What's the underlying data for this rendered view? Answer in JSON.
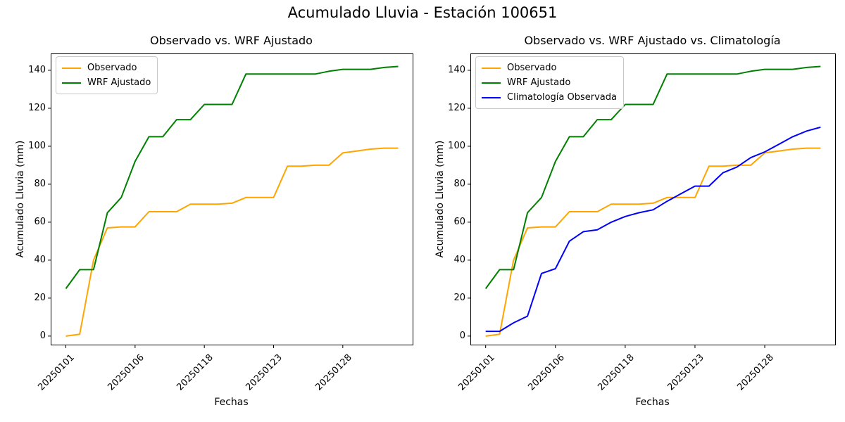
{
  "figure": {
    "title": "Acumulado Lluvia - Estación 100651",
    "background": "#ffffff"
  },
  "chart_data": [
    {
      "type": "line",
      "title": "Observado vs. WRF Ajustado",
      "xlabel": "Fechas",
      "ylabel": "Acumulado Lluvia (mm)",
      "x_tick_labels": [
        "20250101",
        "20250106",
        "20250118",
        "20250123",
        "20250128"
      ],
      "x_tick_positions": [
        0,
        5,
        10,
        15,
        20
      ],
      "y_ticks": [
        0,
        20,
        40,
        60,
        80,
        100,
        120,
        140
      ],
      "ylim": [
        -4.5,
        148.5
      ],
      "n_points": 25,
      "grid": false,
      "legend_position": "upper-left",
      "series": [
        {
          "name": "Observado",
          "color": "#FFA500",
          "values": [
            0,
            1,
            40,
            57,
            57.5,
            57.5,
            65.5,
            65.5,
            65.5,
            69.5,
            69.5,
            69.5,
            70,
            73,
            73,
            73,
            89.5,
            89.5,
            90,
            90,
            96.5,
            97.5,
            98.5,
            99,
            99
          ]
        },
        {
          "name": "WRF Ajustado",
          "color": "#008000",
          "values": [
            25,
            35,
            35,
            65,
            73,
            92,
            105,
            105,
            114,
            114,
            122,
            122,
            122,
            138,
            138,
            138,
            138,
            138,
            138,
            139.5,
            140.5,
            140.5,
            140.5,
            141.5,
            142
          ]
        }
      ]
    },
    {
      "type": "line",
      "title": "Observado vs. WRF Ajustado vs. Climatología",
      "xlabel": "Fechas",
      "ylabel": "Acumulado Lluvia (mm)",
      "x_tick_labels": [
        "20250101",
        "20250106",
        "20250118",
        "20250123",
        "20250128"
      ],
      "x_tick_positions": [
        0,
        5,
        10,
        15,
        20
      ],
      "y_ticks": [
        0,
        20,
        40,
        60,
        80,
        100,
        120,
        140
      ],
      "ylim": [
        -4.5,
        148.5
      ],
      "n_points": 25,
      "grid": false,
      "legend_position": "upper-left",
      "series": [
        {
          "name": "Observado",
          "color": "#FFA500",
          "values": [
            0,
            1,
            40,
            57,
            57.5,
            57.5,
            65.5,
            65.5,
            65.5,
            69.5,
            69.5,
            69.5,
            70,
            73,
            73,
            73,
            89.5,
            89.5,
            90,
            90,
            96.5,
            97.5,
            98.5,
            99,
            99
          ]
        },
        {
          "name": "WRF Ajustado",
          "color": "#008000",
          "values": [
            25,
            35,
            35,
            65,
            73,
            92,
            105,
            105,
            114,
            114,
            122,
            122,
            122,
            138,
            138,
            138,
            138,
            138,
            138,
            139.5,
            140.5,
            140.5,
            140.5,
            141.5,
            142
          ]
        },
        {
          "name": "Climatología Observada",
          "color": "#0000FF",
          "values": [
            2.5,
            2.5,
            7,
            10.5,
            33,
            35.5,
            50,
            55,
            56,
            60,
            63,
            65,
            66.5,
            71,
            75,
            79,
            79,
            86,
            89,
            94,
            97,
            101,
            105,
            108,
            110
          ]
        }
      ]
    }
  ]
}
